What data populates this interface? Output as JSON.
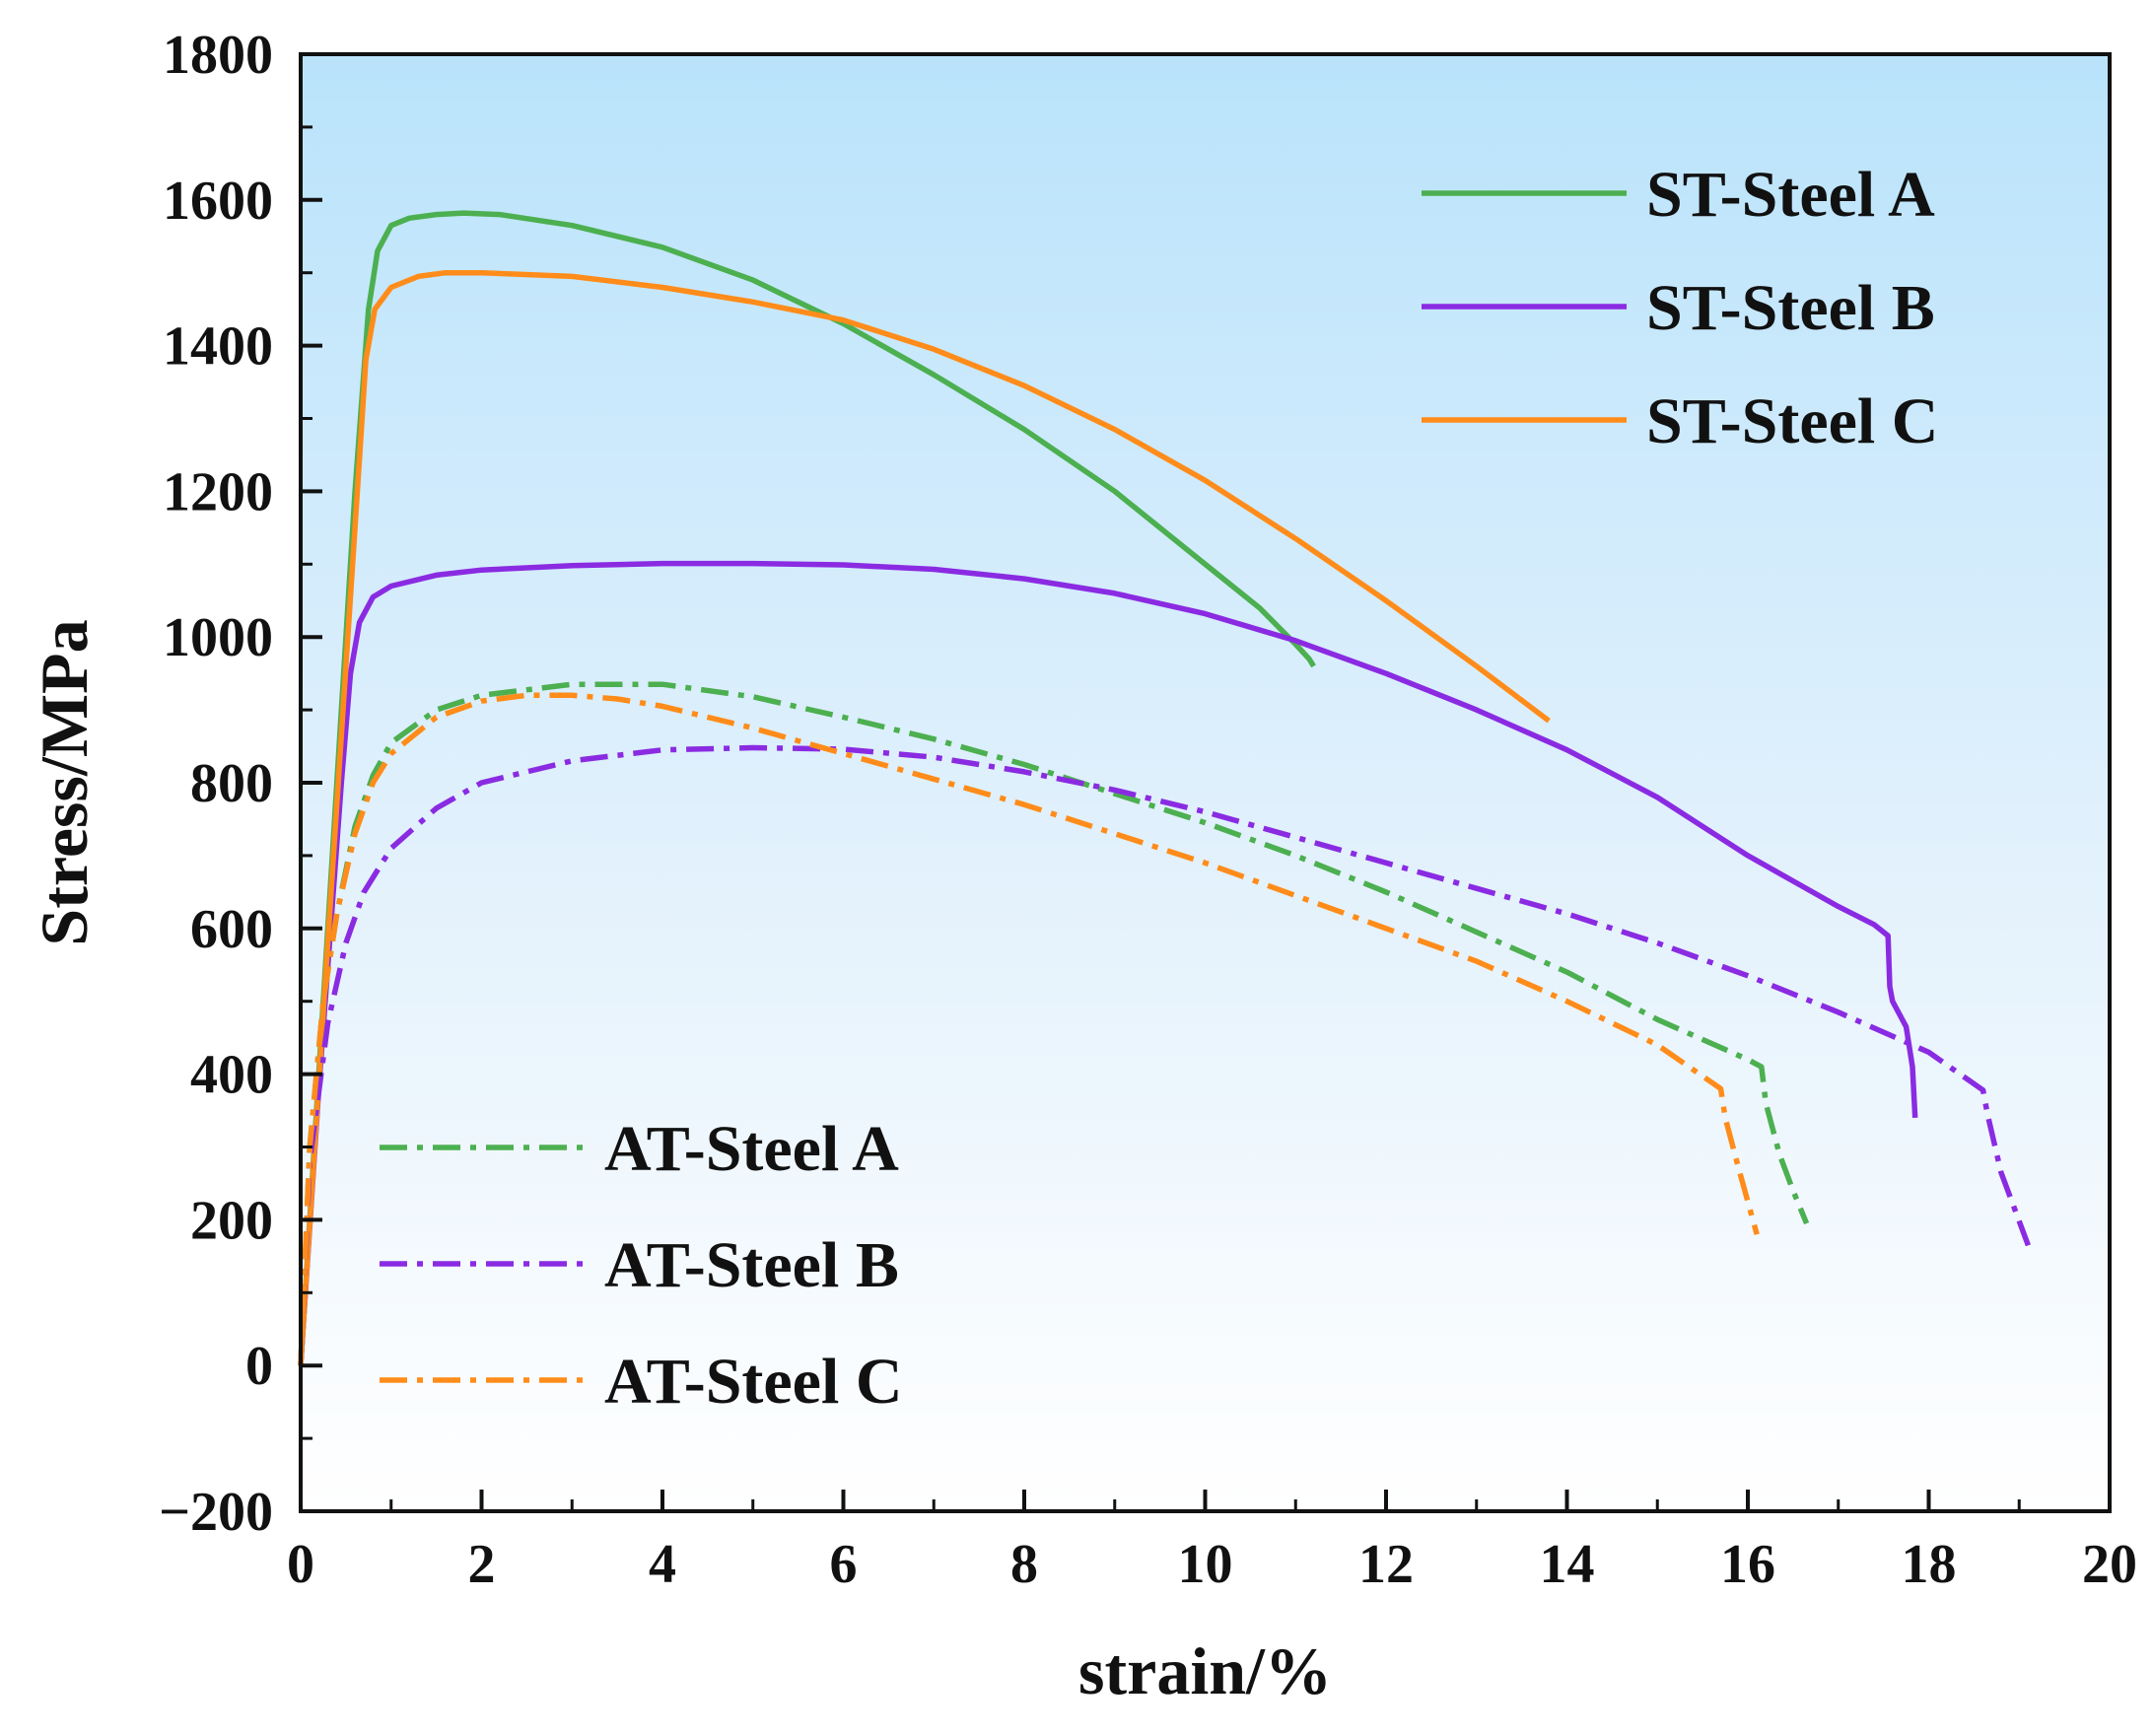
{
  "chart_data": {
    "type": "line",
    "title": "",
    "xlabel": "strain/%",
    "ylabel": "Stress/MPa",
    "xlim": [
      0,
      20
    ],
    "ylim": [
      -200,
      1800
    ],
    "xticks": [
      "0",
      "2",
      "4",
      "6",
      "8",
      "10",
      "12",
      "14",
      "16",
      "18",
      "20"
    ],
    "yticks": [
      "−200",
      "0",
      "200",
      "400",
      "600",
      "800",
      "1000",
      "1200",
      "1400",
      "1600",
      "1800"
    ],
    "grid": false,
    "background": "sky-blue to white vertical gradient",
    "legends": {
      "upper": {
        "placement": "top-right",
        "entries": [
          "ST-Steel A",
          "ST-Steel B",
          "ST-Steel C"
        ]
      },
      "lower": {
        "placement": "bottom-left",
        "entries": [
          "AT-Steel A",
          "AT-Steel B",
          "AT-Steel C"
        ]
      }
    },
    "series": [
      {
        "name": "ST-Steel A",
        "color": "#4caf50",
        "style": "solid",
        "x": [
          0,
          0.3,
          0.6,
          0.75,
          0.85,
          1.0,
          1.2,
          1.5,
          1.8,
          2.2,
          3.0,
          4.0,
          5.0,
          6.0,
          7.0,
          8.0,
          9.0,
          10.0,
          10.6,
          11.0,
          11.15,
          11.2
        ],
        "y": [
          0,
          600,
          1200,
          1450,
          1530,
          1565,
          1575,
          1580,
          1582,
          1580,
          1565,
          1535,
          1490,
          1430,
          1360,
          1285,
          1200,
          1100,
          1040,
          990,
          970,
          960
        ]
      },
      {
        "name": "ST-Steel B",
        "color": "#8a2be2",
        "style": "solid",
        "x": [
          0,
          0.2,
          0.45,
          0.55,
          0.65,
          0.8,
          1.0,
          1.5,
          2.0,
          3.0,
          4.0,
          5.0,
          6.0,
          7.0,
          8.0,
          9.0,
          10.0,
          11.0,
          12.0,
          13.0,
          14.0,
          15.0,
          16.0,
          17.0,
          17.4,
          17.55,
          17.57,
          17.6,
          17.75,
          17.82,
          17.85
        ],
        "y": [
          0,
          380,
          800,
          950,
          1020,
          1055,
          1070,
          1085,
          1092,
          1098,
          1101,
          1101,
          1099,
          1093,
          1080,
          1060,
          1032,
          995,
          950,
          900,
          845,
          780,
          700,
          630,
          605,
          590,
          520,
          500,
          465,
          410,
          340
        ]
      },
      {
        "name": "ST-Steel C",
        "color": "#ff8c1a",
        "style": "solid",
        "x": [
          0,
          0.3,
          0.6,
          0.72,
          0.82,
          1.0,
          1.3,
          1.6,
          2.0,
          3.0,
          4.0,
          5.0,
          6.0,
          7.0,
          8.0,
          9.0,
          10.0,
          11.0,
          12.0,
          13.0,
          13.8
        ],
        "y": [
          0,
          580,
          1150,
          1380,
          1450,
          1480,
          1495,
          1500,
          1500,
          1495,
          1480,
          1460,
          1435,
          1395,
          1345,
          1285,
          1215,
          1135,
          1050,
          960,
          885
        ]
      },
      {
        "name": "AT-Steel A",
        "color": "#4caf50",
        "style": "dashdot",
        "x": [
          0,
          0.1,
          0.25,
          0.4,
          0.6,
          0.8,
          1.0,
          1.5,
          2.0,
          3.0,
          4.0,
          5.0,
          6.0,
          7.0,
          8.0,
          9.0,
          10.0,
          11.0,
          12.0,
          13.0,
          14.0,
          15.0,
          16.0,
          16.15,
          16.2,
          16.35,
          16.5,
          16.65
        ],
        "y": [
          0,
          300,
          500,
          620,
          740,
          810,
          855,
          900,
          920,
          935,
          935,
          918,
          890,
          860,
          825,
          785,
          745,
          700,
          650,
          595,
          540,
          475,
          420,
          410,
          360,
          290,
          240,
          195
        ]
      },
      {
        "name": "AT-Steel B",
        "color": "#8a2be2",
        "style": "dashdot",
        "x": [
          0,
          0.1,
          0.3,
          0.5,
          0.7,
          1.0,
          1.5,
          2.0,
          3.0,
          4.0,
          5.0,
          6.0,
          7.0,
          8.0,
          9.0,
          10.0,
          11.0,
          12.0,
          13.0,
          14.0,
          15.0,
          16.0,
          17.0,
          18.0,
          18.6,
          18.65,
          18.8,
          19.1
        ],
        "y": [
          0,
          280,
          470,
          580,
          650,
          710,
          765,
          800,
          830,
          845,
          848,
          846,
          835,
          815,
          790,
          760,
          725,
          690,
          655,
          620,
          580,
          535,
          485,
          430,
          378,
          345,
          265,
          165
        ]
      },
      {
        "name": "AT-Steel C",
        "color": "#ff8c1a",
        "style": "dashdot",
        "x": [
          0,
          0.1,
          0.25,
          0.4,
          0.6,
          0.8,
          1.0,
          1.5,
          2.0,
          2.5,
          3.0,
          3.5,
          4.0,
          5.0,
          6.0,
          7.0,
          8.0,
          9.0,
          10.0,
          11.0,
          12.0,
          13.0,
          14.0,
          15.0,
          15.7,
          15.75,
          15.9,
          16.1
        ],
        "y": [
          0,
          300,
          500,
          620,
          730,
          800,
          840,
          890,
          912,
          920,
          920,
          915,
          905,
          875,
          840,
          805,
          770,
          730,
          690,
          645,
          600,
          555,
          500,
          440,
          380,
          340,
          270,
          180
        ]
      }
    ]
  }
}
